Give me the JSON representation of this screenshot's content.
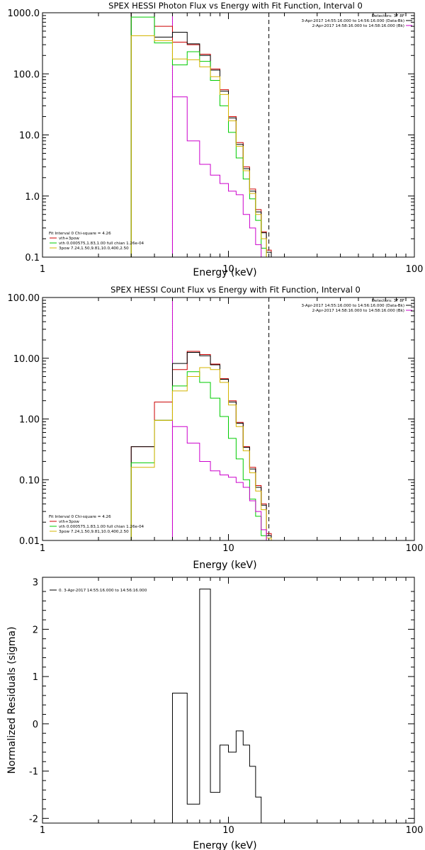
{
  "chart_data": [
    {
      "type": "line",
      "title": "SPEX HESSI Photon Flux vs Energy with Fit Function, Interval 0",
      "xlabel": "Energy (keV)",
      "ylabel": "",
      "xscale": "log",
      "yscale": "log",
      "xlim": [
        1,
        100
      ],
      "ylim": [
        0.1,
        1000
      ],
      "x_tick_labels": [
        "1",
        "10",
        "100"
      ],
      "y_tick_labels": [
        "0.1",
        "1.0",
        "10.0",
        "100.0",
        "1000.0"
      ],
      "energy_edges": [
        3,
        4,
        5,
        6,
        7,
        8,
        9,
        10,
        11,
        12,
        13,
        14,
        15,
        16,
        17,
        18
      ],
      "series": [
        {
          "name": "vth+3pow",
          "color": "#cc0000",
          "values": [
            1000,
            600,
            330,
            300,
            210,
            120,
            55,
            20,
            7.5,
            3,
            1.3,
            0.6,
            0.26,
            0.13,
            0.1
          ]
        },
        {
          "name": "data",
          "color": "#000000",
          "values": [
            1000,
            400,
            480,
            310,
            200,
            115,
            52,
            19,
            7,
            2.8,
            1.2,
            0.55,
            0.25,
            0.12,
            0.1
          ]
        },
        {
          "name": "vth 0.000575,1.83,1.00 full chian 1.26e-04",
          "color": "#00cc00",
          "values": [
            850,
            320,
            140,
            230,
            160,
            78,
            30,
            11,
            4.2,
            1.9,
            0.9,
            0.4,
            0.14,
            0.1,
            0.1
          ]
        },
        {
          "name": "3pow 7.24,1.50,9.81,10.0,400,2.50",
          "color": "#d4b400",
          "values": [
            420,
            350,
            175,
            170,
            130,
            90,
            46,
            17,
            6.5,
            2.6,
            1.1,
            0.5,
            0.2,
            0.1,
            0.1
          ]
        },
        {
          "name": "",
          "color": "#cc00cc",
          "values": [
            null,
            null,
            42,
            8,
            3.3,
            2.2,
            1.6,
            1.2,
            1.05,
            0.5,
            0.3,
            0.16,
            0.1,
            0.1,
            0.1
          ]
        }
      ],
      "vlines": [
        {
          "x": 5,
          "style": "dotted",
          "color": "#000000"
        },
        {
          "x": 5,
          "style": "solid",
          "color": "#cc00cc"
        },
        {
          "x": 16.5,
          "style": "dashed",
          "color": "#000000"
        }
      ],
      "annotations_right": [
        "Detectors: 3F 8F",
        "3-Apr-2017 14:55:16.000 to 14:56:16.000 (Data-Bk)",
        "2-Apr-2017 14:58:16.000 to 14:58:16.000 (Bk)"
      ],
      "annotation_right_colors": [
        "#000000",
        "#000000",
        "#cc00cc"
      ],
      "legend_left": [
        "Fit Interval  0   Chi-square = 4.26",
        "vth+3pow",
        "vth 0.000575,1.83,1.00  full chian 1.26e-04",
        "3pow 7.24,1.50,9.81,10.0,400,2.50"
      ],
      "legend_left_colors": [
        "#000000",
        "#cc0000",
        "#00cc00",
        "#d4b400"
      ]
    },
    {
      "type": "line",
      "title": "SPEX HESSI Count Flux vs Energy with Fit Function, Interval 0",
      "xlabel": "Energy (keV)",
      "ylabel": "",
      "xscale": "log",
      "yscale": "log",
      "xlim": [
        1,
        100
      ],
      "ylim": [
        0.01,
        100
      ],
      "x_tick_labels": [
        "1",
        "10",
        "100"
      ],
      "y_tick_labels": [
        "0.01",
        "0.10",
        "1.00",
        "10.00",
        "100.00"
      ],
      "energy_edges": [
        3,
        4,
        5,
        6,
        7,
        8,
        9,
        10,
        11,
        12,
        13,
        14,
        15,
        16,
        17,
        18
      ],
      "series": [
        {
          "name": "vth+3pow",
          "color": "#cc0000",
          "values": [
            0.35,
            1.9,
            6.5,
            13,
            11.5,
            8,
            4.6,
            2,
            0.88,
            0.35,
            0.16,
            0.08,
            0.04,
            0.013,
            0.01
          ]
        },
        {
          "name": "data",
          "color": "#000000",
          "values": [
            0.35,
            0.95,
            8.2,
            12.5,
            11,
            7.8,
            4.5,
            1.9,
            0.85,
            0.34,
            0.15,
            0.075,
            0.038,
            0.012,
            0.01
          ]
        },
        {
          "name": "vth 0.000575,1.83,1.00 full chian 1.26e-04",
          "color": "#00cc00",
          "values": [
            0.19,
            0.95,
            3.5,
            6,
            4,
            2.2,
            1.1,
            0.48,
            0.22,
            0.1,
            0.048,
            0.025,
            0.012,
            0.01,
            0.01
          ]
        },
        {
          "name": "3pow 7.24,1.50,9.81,10.0,400,2.50",
          "color": "#d4b400",
          "values": [
            0.16,
            0.95,
            2.9,
            5,
            7,
            6.5,
            4,
            1.7,
            0.75,
            0.3,
            0.13,
            0.065,
            0.032,
            0.011,
            0.01
          ]
        },
        {
          "name": "",
          "color": "#cc00cc",
          "values": [
            null,
            null,
            0.75,
            0.4,
            0.2,
            0.14,
            0.12,
            0.11,
            0.09,
            0.075,
            0.045,
            0.03,
            0.015,
            0.01,
            0.01
          ]
        }
      ],
      "vlines": [
        {
          "x": 5,
          "style": "dotted",
          "color": "#000000"
        },
        {
          "x": 5,
          "style": "solid",
          "color": "#cc00cc"
        },
        {
          "x": 16.5,
          "style": "dashed",
          "color": "#000000"
        }
      ],
      "annotations_right": [
        "Detectors: 3F 8F",
        "3-Apr-2017 14:55:16.000 to 14:56:16.000 (Data-Bk)",
        "2-Apr-2017 14:58:16.000 to 14:58:16.000 (Bk)"
      ],
      "annotation_right_colors": [
        "#000000",
        "#000000",
        "#cc00cc"
      ],
      "legend_left": [
        "Fit Interval  0   Chi-square = 4.26",
        "vth+3pow",
        "vth 0.000575,1.83,1.00  full chian 1.26e-04",
        "3pow 7.24,1.50,9.81,10.0,400,2.50"
      ],
      "legend_left_colors": [
        "#000000",
        "#cc0000",
        "#00cc00",
        "#d4b400"
      ]
    },
    {
      "type": "line",
      "title": "",
      "xlabel": "Energy (keV)",
      "ylabel": "Normalized Residuals (sigma)",
      "xscale": "log",
      "yscale": "linear",
      "xlim": [
        1,
        100
      ],
      "ylim": [
        -2.1,
        3.1
      ],
      "x_tick_labels": [
        "1",
        "10",
        "100"
      ],
      "y_tick_labels": [
        "-2",
        "-1",
        "0",
        "1",
        "2",
        "3"
      ],
      "energy_edges": [
        5,
        6,
        7,
        8,
        9,
        10,
        11,
        12,
        13,
        14,
        15,
        16,
        17
      ],
      "series": [
        {
          "name": "0.  3-Apr-2017 14:55:16.000 to 14:56:16.000",
          "color": "#000000",
          "values": [
            0.65,
            -1.7,
            2.85,
            -1.45,
            -0.45,
            -0.6,
            -0.15,
            -0.45,
            -0.9,
            -1.55,
            null,
            null
          ]
        }
      ],
      "legend_left": [
        "0.  3-Apr-2017 14:55:16.000 to 14:56:16.000"
      ],
      "legend_left_colors": [
        "#000000"
      ]
    }
  ]
}
